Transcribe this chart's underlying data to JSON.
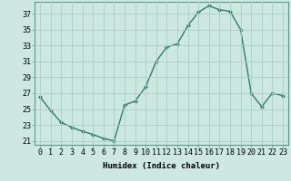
{
  "x": [
    0,
    1,
    2,
    3,
    4,
    5,
    6,
    7,
    8,
    9,
    10,
    11,
    12,
    13,
    14,
    15,
    16,
    17,
    18,
    19,
    20,
    21,
    22,
    23
  ],
  "y": [
    26.5,
    24.8,
    23.3,
    22.7,
    22.2,
    21.8,
    21.3,
    21.0,
    25.5,
    26.0,
    27.8,
    31.0,
    32.8,
    33.2,
    35.5,
    37.2,
    38.0,
    37.5,
    37.3,
    35.0,
    27.0,
    25.3,
    27.0,
    26.7
  ],
  "line_color": "#2e7d6e",
  "marker": "D",
  "marker_size": 2,
  "bg_color": "#cce8e0",
  "grid_color": "#aacfc7",
  "xlabel": "Humidex (Indice chaleur)",
  "ylim": [
    20.5,
    38.5
  ],
  "xlim": [
    -0.5,
    23.5
  ],
  "yticks": [
    21,
    23,
    25,
    27,
    29,
    31,
    33,
    35,
    37
  ],
  "xtick_labels": [
    "0",
    "1",
    "2",
    "3",
    "4",
    "5",
    "6",
    "7",
    "8",
    "9",
    "10",
    "11",
    "12",
    "13",
    "14",
    "15",
    "16",
    "17",
    "18",
    "19",
    "20",
    "21",
    "22",
    "23"
  ],
  "xlabel_fontsize": 6.5,
  "tick_fontsize": 6.0,
  "line_width": 1.0
}
